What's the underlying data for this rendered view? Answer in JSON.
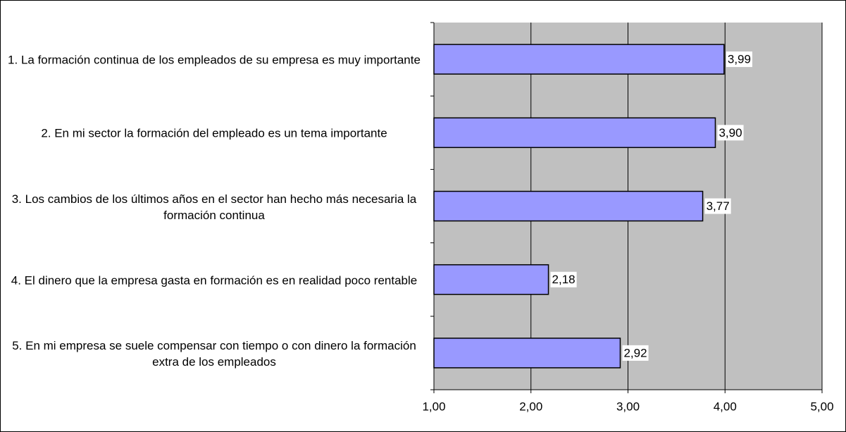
{
  "chart_data": {
    "type": "barh",
    "categories": [
      "1. La formación continua de los empleados de su empresa es muy importante",
      "2. En mi sector la formación del empleado es un tema importante",
      "3. Los cambios de los últimos años en el sector han hecho más necesaria la formación continua",
      "4. El dinero que la empresa gasta en formación es en realidad poco rentable",
      "5. En mi empresa se suele compensar con tiempo o con dinero la formación extra de los empleados"
    ],
    "values": [
      3.99,
      3.9,
      3.77,
      2.18,
      2.92
    ],
    "value_labels": [
      "3,99",
      "3,90",
      "3,77",
      "2,18",
      "2,92"
    ],
    "color": "#9999ff",
    "xlim": [
      1,
      5
    ],
    "xticks": [
      {
        "value": 1,
        "label": "1,00"
      },
      {
        "value": 2,
        "label": "2,00"
      },
      {
        "value": 3,
        "label": "3,00"
      },
      {
        "value": 4,
        "label": "4,00"
      },
      {
        "value": 5,
        "label": "5,00"
      }
    ],
    "grid": true
  }
}
